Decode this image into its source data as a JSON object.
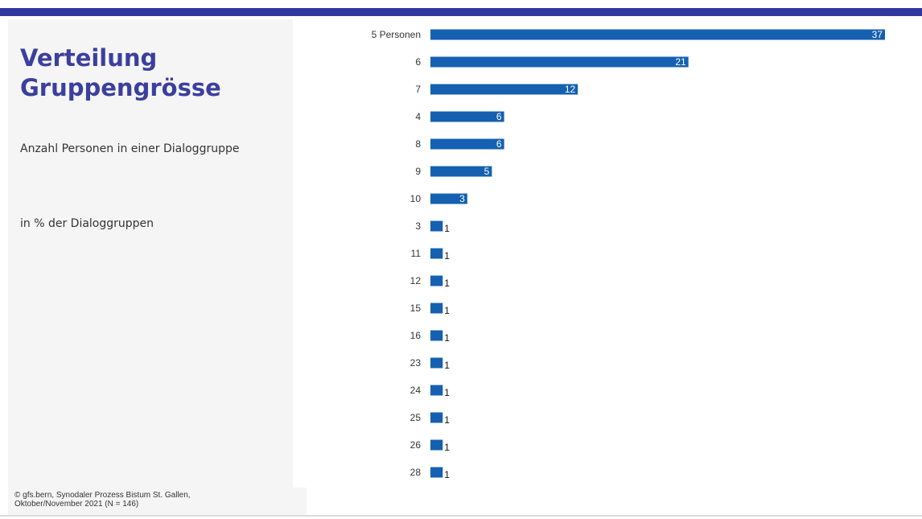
{
  "title_line1": "Verteilung",
  "title_line2": "Gruppengrösse",
  "subtitle": "Anzahl Personen in einer Dialoggruppe",
  "unit_note": "in % der Dialoggruppen",
  "source_line1": "© gfs.bern, Synodaler Prozess Bistum St. Gallen,",
  "source_line2": "Oktober/November 2021 (N = 146)",
  "colors": {
    "accent": "#3236a0",
    "bar": "#1560b0",
    "sidebar": "#f5f5f5"
  },
  "chart_data": {
    "type": "bar",
    "orientation": "horizontal",
    "categories": [
      "5 Personen",
      "6",
      "7",
      "4",
      "8",
      "9",
      "10",
      "3",
      "11",
      "12",
      "15",
      "16",
      "23",
      "24",
      "25",
      "26",
      "28"
    ],
    "values": [
      37,
      21,
      12,
      6,
      6,
      5,
      3,
      1,
      1,
      1,
      1,
      1,
      1,
      1,
      1,
      1,
      1
    ],
    "xlim": [
      0,
      37
    ],
    "grid": false
  }
}
